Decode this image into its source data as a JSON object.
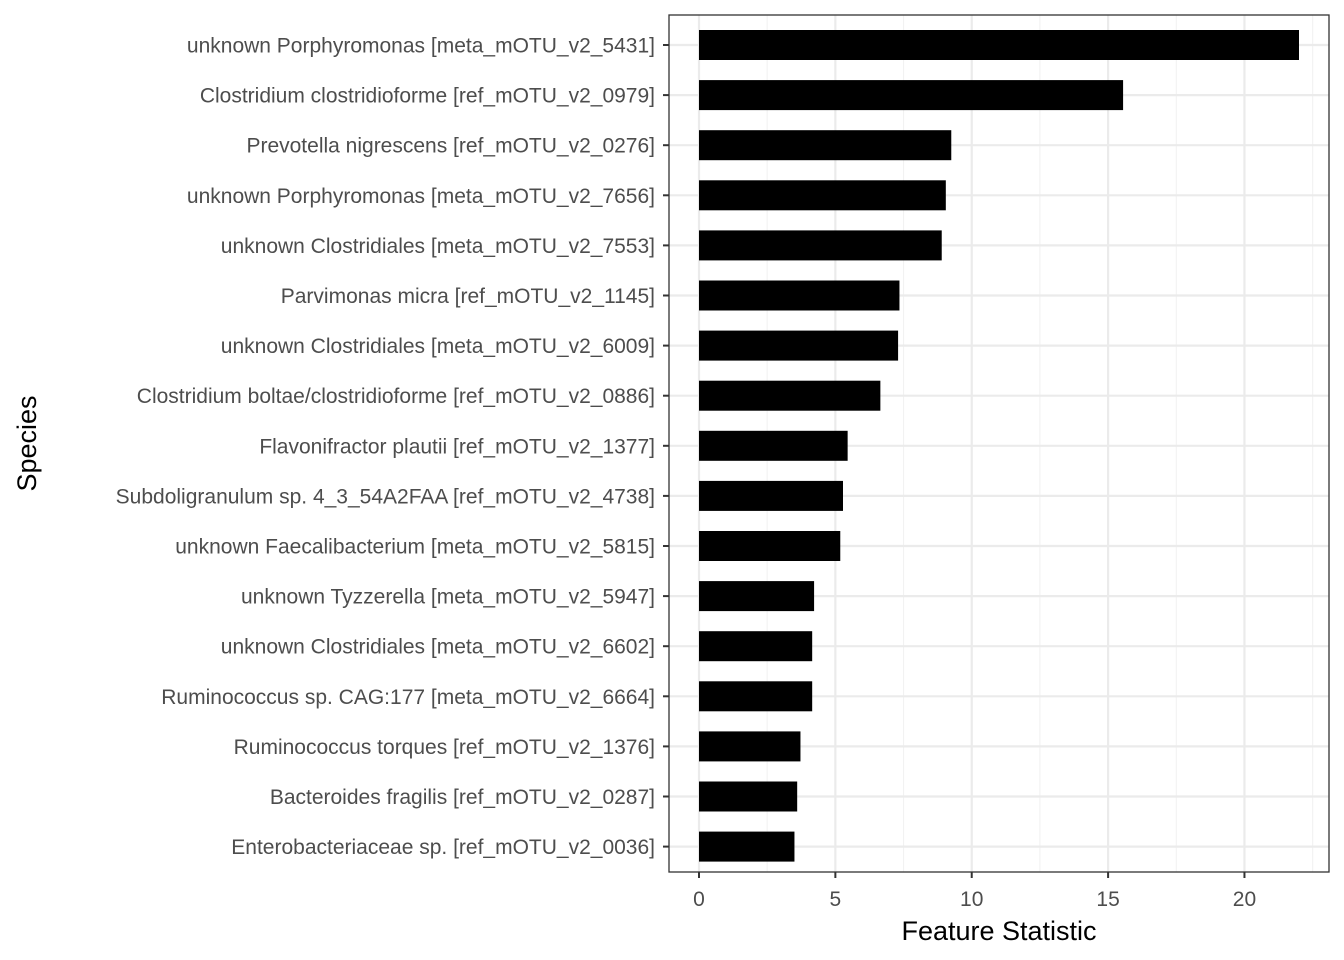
{
  "chart_data": {
    "type": "bar",
    "orientation": "horizontal",
    "title": "",
    "xlabel": "Feature Statistic",
    "ylabel": "Species",
    "xlim": [
      -1.1,
      23.1
    ],
    "x_ticks": [
      0,
      5,
      10,
      15,
      20
    ],
    "grid": true,
    "legend": "none",
    "bar_color": "#000000",
    "categories": [
      "unknown Porphyromonas [meta_mOTU_v2_5431]",
      "Clostridium clostridioforme [ref_mOTU_v2_0979]",
      "Prevotella nigrescens [ref_mOTU_v2_0276]",
      "unknown Porphyromonas [meta_mOTU_v2_7656]",
      "unknown Clostridiales [meta_mOTU_v2_7553]",
      "Parvimonas micra [ref_mOTU_v2_1145]",
      "unknown Clostridiales [meta_mOTU_v2_6009]",
      "Clostridium boltae/clostridioforme [ref_mOTU_v2_0886]",
      "Flavonifractor plautii [ref_mOTU_v2_1377]",
      "Subdoligranulum sp. 4_3_54A2FAA [ref_mOTU_v2_4738]",
      "unknown Faecalibacterium [meta_mOTU_v2_5815]",
      "unknown Tyzzerella [meta_mOTU_v2_5947]",
      "unknown Clostridiales [meta_mOTU_v2_6602]",
      "Ruminococcus sp. CAG:177 [meta_mOTU_v2_6664]",
      "Ruminococcus torques [ref_mOTU_v2_1376]",
      "Bacteroides fragilis [ref_mOTU_v2_0287]",
      "Enterobacteriaceae sp. [ref_mOTU_v2_0036]"
    ],
    "values": [
      22.0,
      15.55,
      9.25,
      9.05,
      8.9,
      7.35,
      7.3,
      6.65,
      5.45,
      5.28,
      5.18,
      4.22,
      4.15,
      4.15,
      3.72,
      3.6,
      3.5
    ]
  }
}
